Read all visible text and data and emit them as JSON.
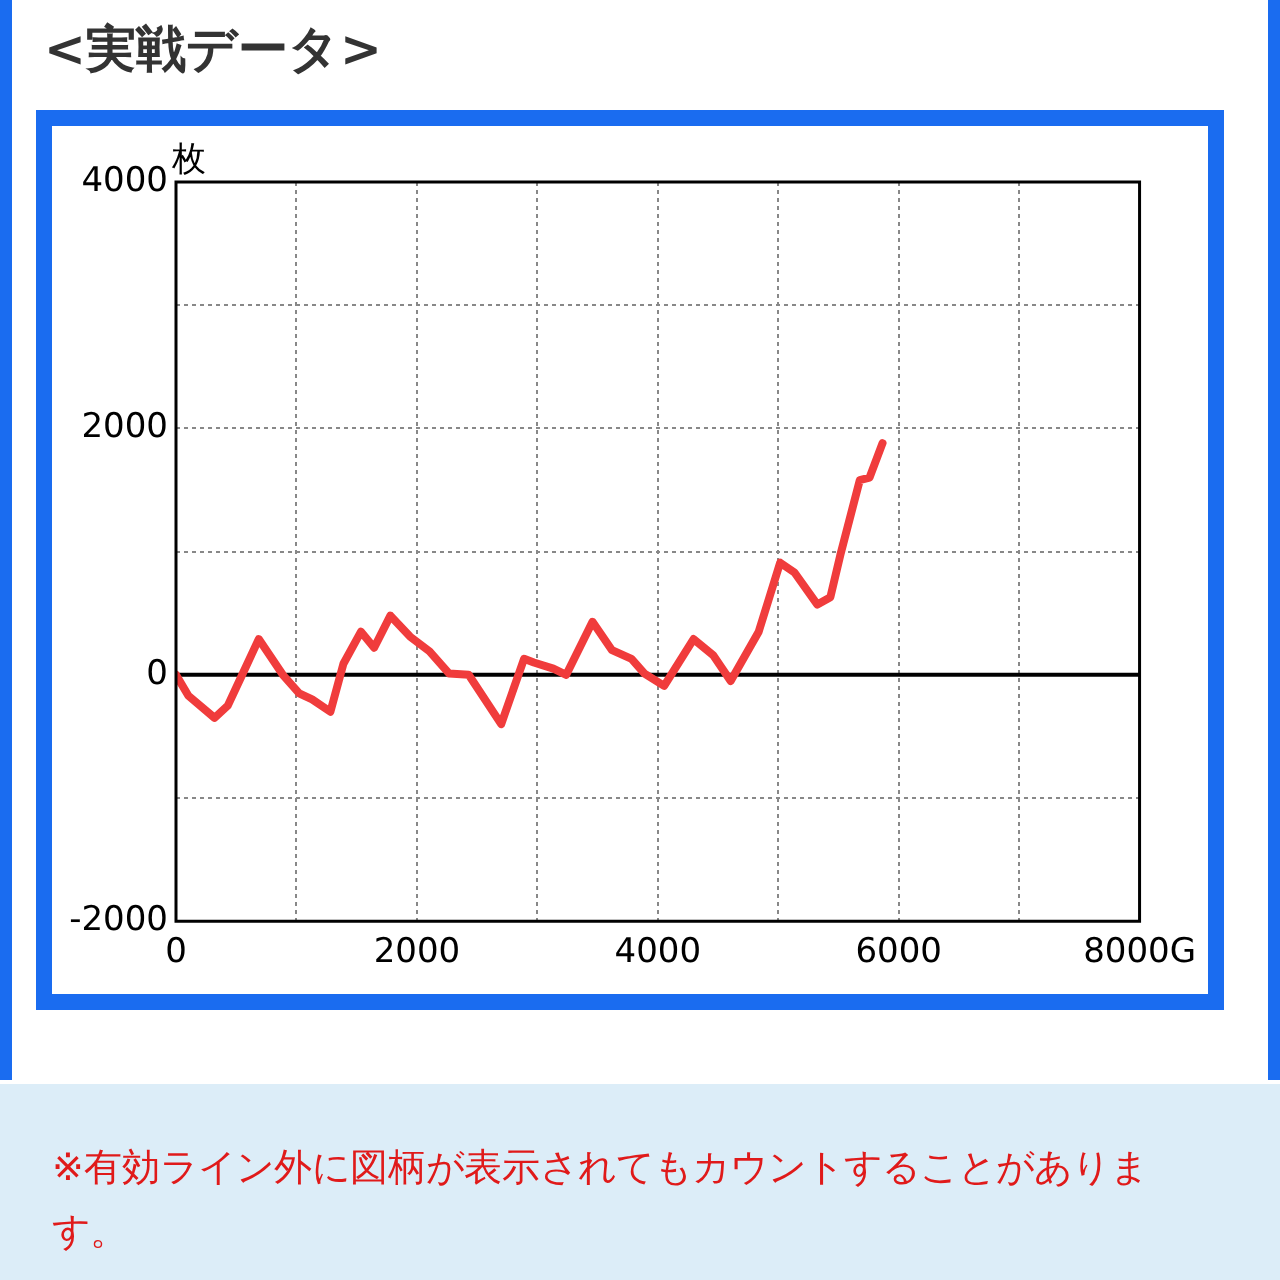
{
  "chart_data": {
    "type": "line",
    "title": "<実戦データ>",
    "ylabel": "枚",
    "x": [
      0,
      103,
      320,
      430,
      535,
      687,
      887,
      1023,
      1130,
      1282,
      1390,
      1536,
      1645,
      1780,
      1943,
      2105,
      2268,
      2430,
      2700,
      2890,
      2971,
      3133,
      3240,
      3458,
      3620,
      3782,
      3890,
      4053,
      4297,
      4459,
      4605,
      4838,
      5016,
      5135,
      5325,
      5433,
      5515,
      5677,
      5758,
      5866
    ],
    "series": [
      {
        "color": "#f03c3c",
        "values": [
          0,
          -170,
          -350,
          -250,
          -30,
          290,
          0,
          -150,
          -200,
          -300,
          90,
          350,
          220,
          480,
          310,
          190,
          10,
          0,
          -400,
          130,
          100,
          50,
          0,
          430,
          200,
          130,
          10,
          -90,
          290,
          160,
          -50,
          350,
          910,
          830,
          570,
          630,
          970,
          1580,
          1600,
          1880
        ]
      }
    ],
    "xlim": [
      0,
      8000
    ],
    "xticks": [
      0,
      {
        "value": 1000,
        "label": null
      },
      2000,
      {
        "value": 3000,
        "label": null
      },
      4000,
      {
        "value": 5000,
        "label": null
      },
      6000,
      {
        "value": 7000,
        "label": null
      },
      {
        "value": 8000,
        "label": "8000G"
      }
    ],
    "ylim": [
      -2000,
      4000
    ],
    "yticks": [
      -2000,
      {
        "value": -1000,
        "label": null
      },
      0,
      {
        "value": 1000,
        "label": null
      },
      2000,
      {
        "value": 3000,
        "label": null
      },
      4000
    ],
    "ref_lines": [
      {
        "axis": "y",
        "value": 0,
        "color": "#000000"
      }
    ],
    "grid": true,
    "legend": false,
    "marker": "none",
    "line_style": "solid",
    "annotations": [
      "※有効ライン外に図柄が表示されてもカウントすることがあります。"
    ]
  }
}
